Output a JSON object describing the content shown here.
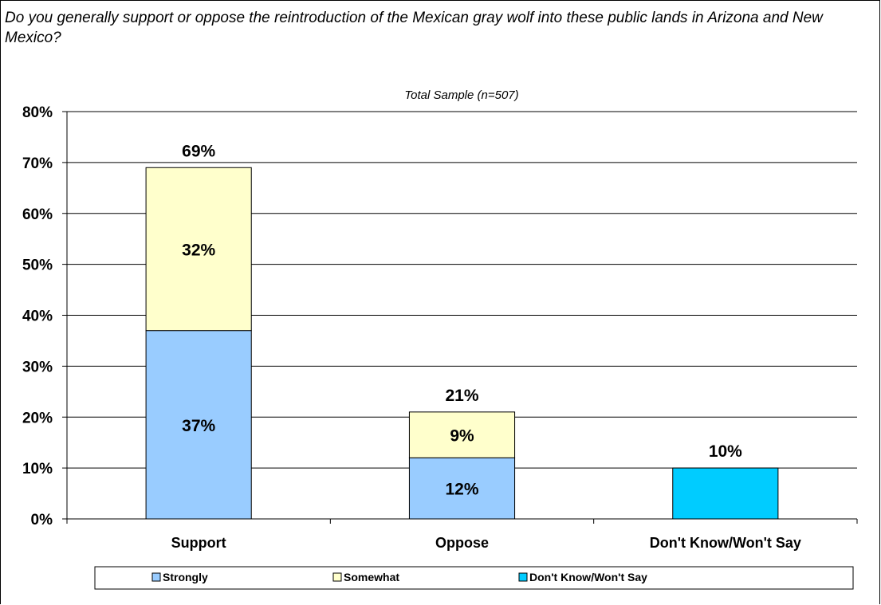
{
  "question": "Do you generally support or oppose the reintroduction of the Mexican gray wolf into these public lands in Arizona and New Mexico?",
  "chart_data": {
    "type": "bar",
    "stacked": true,
    "subtitle": "Total Sample (n=507)",
    "categories": [
      "Support",
      "Oppose",
      "Don't Know/Won't Say"
    ],
    "series": [
      {
        "name": "Strongly",
        "color": "#99ccff",
        "values": [
          37,
          12,
          null
        ]
      },
      {
        "name": "Somewhat",
        "color": "#ffffcc",
        "values": [
          32,
          9,
          null
        ]
      },
      {
        "name": "Don't Know/Won't Say",
        "color": "#00ccff",
        "values": [
          null,
          null,
          10
        ]
      }
    ],
    "segment_labels": [
      [
        "37%",
        "32%"
      ],
      [
        "12%",
        "9%"
      ],
      [
        "10%"
      ]
    ],
    "totals": [
      "69%",
      "21%",
      "10%"
    ],
    "ylim": [
      0,
      80
    ],
    "yticks": [
      "0%",
      "10%",
      "20%",
      "30%",
      "40%",
      "50%",
      "60%",
      "70%",
      "80%"
    ],
    "grid": true,
    "legend_position": "bottom"
  }
}
